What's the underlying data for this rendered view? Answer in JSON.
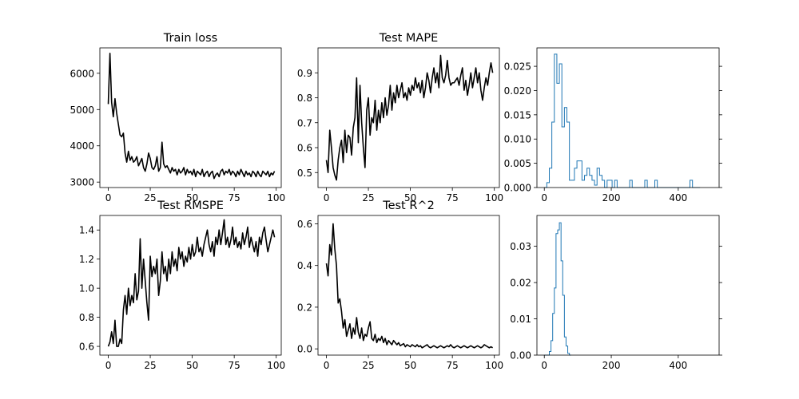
{
  "chart_data": [
    {
      "type": "line",
      "title": "Train loss",
      "xlim": [
        -5,
        103
      ],
      "ylim": [
        2850,
        6700
      ],
      "xticks": [
        "0",
        "25",
        "50",
        "75",
        "100"
      ],
      "yticks": [
        "3000",
        "4000",
        "5000",
        "6000"
      ],
      "line_color": "#000000",
      "x": [
        0,
        1,
        2,
        3,
        4,
        5,
        6,
        7,
        8,
        9,
        10,
        11,
        12,
        13,
        14,
        15,
        16,
        17,
        18,
        19,
        20,
        21,
        22,
        23,
        24,
        25,
        26,
        27,
        28,
        29,
        30,
        31,
        32,
        33,
        34,
        35,
        36,
        37,
        38,
        39,
        40,
        41,
        42,
        43,
        44,
        45,
        46,
        47,
        48,
        49,
        50,
        51,
        52,
        53,
        54,
        55,
        56,
        57,
        58,
        59,
        60,
        61,
        62,
        63,
        64,
        65,
        66,
        67,
        68,
        69,
        70,
        71,
        72,
        73,
        74,
        75,
        76,
        77,
        78,
        79,
        80,
        81,
        82,
        83,
        84,
        85,
        86,
        87,
        88,
        89,
        90,
        91,
        92,
        93,
        94,
        95,
        96,
        97,
        98,
        99
      ],
      "y": [
        5150,
        6550,
        5200,
        4800,
        5300,
        4900,
        4600,
        4300,
        4250,
        4350,
        3800,
        3550,
        3850,
        3600,
        3700,
        3550,
        3600,
        3700,
        3450,
        3550,
        3650,
        3400,
        3300,
        3500,
        3800,
        3650,
        3400,
        3350,
        3450,
        3700,
        3300,
        3400,
        4100,
        3500,
        3400,
        3450,
        3350,
        3250,
        3400,
        3300,
        3350,
        3200,
        3350,
        3250,
        3300,
        3400,
        3200,
        3350,
        3250,
        3300,
        3200,
        3350,
        3150,
        3300,
        3250,
        3200,
        3350,
        3150,
        3250,
        3300,
        3150,
        3250,
        3300,
        3100,
        3200,
        3250,
        3150,
        3300,
        3350,
        3200,
        3300,
        3250,
        3350,
        3200,
        3300,
        3250,
        3150,
        3300,
        3200,
        3350,
        3250,
        3150,
        3300,
        3200,
        3250,
        3150,
        3300,
        3250,
        3150,
        3300,
        3200,
        3150,
        3300,
        3250,
        3200,
        3300,
        3150,
        3250,
        3200,
        3300
      ]
    },
    {
      "type": "line",
      "title": "Test MAPE",
      "xlim": [
        -5,
        103
      ],
      "ylim": [
        0.44,
        1.0
      ],
      "xticks": [
        "0",
        "25",
        "50",
        "75",
        "100"
      ],
      "yticks": [
        "0.5",
        "0.6",
        "0.7",
        "0.8",
        "0.9"
      ],
      "line_color": "#000000",
      "x": [
        0,
        1,
        2,
        3,
        4,
        5,
        6,
        7,
        8,
        9,
        10,
        11,
        12,
        13,
        14,
        15,
        16,
        17,
        18,
        19,
        20,
        21,
        22,
        23,
        24,
        25,
        26,
        27,
        28,
        29,
        30,
        31,
        32,
        33,
        34,
        35,
        36,
        37,
        38,
        39,
        40,
        41,
        42,
        43,
        44,
        45,
        46,
        47,
        48,
        49,
        50,
        51,
        52,
        53,
        54,
        55,
        56,
        57,
        58,
        59,
        60,
        61,
        62,
        63,
        64,
        65,
        66,
        67,
        68,
        69,
        70,
        71,
        72,
        73,
        74,
        75,
        76,
        77,
        78,
        79,
        80,
        81,
        82,
        83,
        84,
        85,
        86,
        87,
        88,
        89,
        90,
        91,
        92,
        93,
        94,
        95,
        96,
        97,
        98,
        99
      ],
      "y": [
        0.55,
        0.5,
        0.67,
        0.6,
        0.52,
        0.49,
        0.47,
        0.55,
        0.6,
        0.63,
        0.54,
        0.67,
        0.58,
        0.65,
        0.64,
        0.57,
        0.68,
        0.72,
        0.88,
        0.62,
        0.85,
        0.7,
        0.6,
        0.52,
        0.75,
        0.8,
        0.65,
        0.72,
        0.7,
        0.79,
        0.67,
        0.75,
        0.7,
        0.78,
        0.72,
        0.8,
        0.73,
        0.77,
        0.85,
        0.75,
        0.82,
        0.78,
        0.85,
        0.8,
        0.83,
        0.86,
        0.8,
        0.82,
        0.79,
        0.84,
        0.81,
        0.85,
        0.83,
        0.88,
        0.84,
        0.86,
        0.82,
        0.87,
        0.8,
        0.84,
        0.9,
        0.87,
        0.82,
        0.88,
        0.92,
        0.86,
        0.9,
        0.84,
        0.97,
        0.88,
        0.86,
        0.89,
        0.95,
        0.88,
        0.85,
        0.86,
        0.86,
        0.87,
        0.88,
        0.85,
        0.89,
        0.92,
        0.83,
        0.87,
        0.81,
        0.85,
        0.9,
        0.84,
        0.88,
        0.92,
        0.86,
        0.9,
        0.83,
        0.79,
        0.84,
        0.88,
        0.85,
        0.9,
        0.94,
        0.9
      ]
    },
    {
      "type": "bar",
      "subtype": "step-histogram",
      "title": "",
      "xlim": [
        -22,
        522
      ],
      "ylim": [
        0,
        0.0288
      ],
      "xticks": [
        "0",
        "200",
        "400"
      ],
      "yticks": [
        "0.000",
        "0.005",
        "0.010",
        "0.015",
        "0.020",
        "0.025"
      ],
      "line_color": "#1f77b4",
      "bin_width": 7.5,
      "bins_start": 0,
      "values": [
        0,
        0.001,
        0.004,
        0.0135,
        0.0275,
        0.0215,
        0.0255,
        0.0125,
        0.0165,
        0.0135,
        0.0015,
        0.0015,
        0.004,
        0.0055,
        0.0055,
        0.0015,
        0.0025,
        0.004,
        0.0025,
        0.0015,
        0.0005,
        0.004,
        0.0025,
        0.0015,
        0,
        0.0015,
        0.0015,
        0,
        0.0015,
        0,
        0,
        0,
        0,
        0,
        0.0015,
        0,
        0,
        0,
        0,
        0,
        0.0015,
        0,
        0,
        0,
        0.0015,
        0,
        0,
        0,
        0,
        0,
        0,
        0,
        0,
        0,
        0,
        0,
        0,
        0,
        0.0015,
        0,
        0,
        0
      ]
    },
    {
      "type": "line",
      "title": "Test RMSPE",
      "xlim": [
        -5,
        103
      ],
      "ylim": [
        0.54,
        1.5
      ],
      "xticks": [
        "0",
        "25",
        "50",
        "75",
        "100"
      ],
      "yticks": [
        "0.6",
        "0.8",
        "1.0",
        "1.2",
        "1.4"
      ],
      "line_color": "#000000",
      "x": [
        0,
        1,
        2,
        3,
        4,
        5,
        6,
        7,
        8,
        9,
        10,
        11,
        12,
        13,
        14,
        15,
        16,
        17,
        18,
        19,
        20,
        21,
        22,
        23,
        24,
        25,
        26,
        27,
        28,
        29,
        30,
        31,
        32,
        33,
        34,
        35,
        36,
        37,
        38,
        39,
        40,
        41,
        42,
        43,
        44,
        45,
        46,
        47,
        48,
        49,
        50,
        51,
        52,
        53,
        54,
        55,
        56,
        57,
        58,
        59,
        60,
        61,
        62,
        63,
        64,
        65,
        66,
        67,
        68,
        69,
        70,
        71,
        72,
        73,
        74,
        75,
        76,
        77,
        78,
        79,
        80,
        81,
        82,
        83,
        84,
        85,
        86,
        87,
        88,
        89,
        90,
        91,
        92,
        93,
        94,
        95,
        96,
        97,
        98,
        99
      ],
      "y": [
        0.6,
        0.63,
        0.7,
        0.62,
        0.78,
        0.6,
        0.6,
        0.65,
        0.62,
        0.85,
        0.95,
        0.82,
        1.0,
        0.88,
        0.95,
        0.9,
        1.1,
        0.92,
        0.98,
        1.34,
        1.0,
        1.2,
        1.05,
        0.9,
        0.78,
        1.22,
        1.08,
        1.15,
        1.1,
        1.2,
        0.95,
        1.05,
        1.25,
        1.1,
        1.15,
        1.05,
        1.2,
        1.1,
        1.25,
        1.15,
        1.2,
        1.12,
        1.28,
        1.2,
        1.25,
        1.15,
        1.22,
        1.18,
        1.28,
        1.2,
        1.3,
        1.22,
        1.25,
        1.35,
        1.25,
        1.28,
        1.22,
        1.3,
        1.35,
        1.4,
        1.3,
        1.25,
        1.32,
        1.22,
        1.35,
        1.3,
        1.4,
        1.3,
        1.38,
        1.47,
        1.3,
        1.35,
        1.28,
        1.33,
        1.42,
        1.3,
        1.35,
        1.28,
        1.32,
        1.27,
        1.38,
        1.3,
        1.35,
        1.42,
        1.28,
        1.35,
        1.3,
        1.25,
        1.32,
        1.22,
        1.35,
        1.3,
        1.38,
        1.42,
        1.33,
        1.25,
        1.3,
        1.35,
        1.4,
        1.35
      ]
    },
    {
      "type": "line",
      "title": "Test R^2",
      "xlim": [
        -5,
        103
      ],
      "ylim": [
        -0.03,
        0.64
      ],
      "xticks": [
        "0",
        "25",
        "50",
        "75",
        "100"
      ],
      "yticks": [
        "0.0",
        "0.2",
        "0.4",
        "0.6"
      ],
      "line_color": "#000000",
      "x": [
        0,
        1,
        2,
        3,
        4,
        5,
        6,
        7,
        8,
        9,
        10,
        11,
        12,
        13,
        14,
        15,
        16,
        17,
        18,
        19,
        20,
        21,
        22,
        23,
        24,
        25,
        26,
        27,
        28,
        29,
        30,
        31,
        32,
        33,
        34,
        35,
        36,
        37,
        38,
        39,
        40,
        41,
        42,
        43,
        44,
        45,
        46,
        47,
        48,
        49,
        50,
        51,
        52,
        53,
        54,
        55,
        56,
        57,
        58,
        59,
        60,
        61,
        62,
        63,
        64,
        65,
        66,
        67,
        68,
        69,
        70,
        71,
        72,
        73,
        74,
        75,
        76,
        77,
        78,
        79,
        80,
        81,
        82,
        83,
        84,
        85,
        86,
        87,
        88,
        89,
        90,
        91,
        92,
        93,
        94,
        95,
        96,
        97,
        98,
        99
      ],
      "y": [
        0.41,
        0.35,
        0.5,
        0.45,
        0.6,
        0.48,
        0.4,
        0.22,
        0.24,
        0.18,
        0.1,
        0.14,
        0.06,
        0.09,
        0.12,
        0.05,
        0.1,
        0.07,
        0.15,
        0.08,
        0.05,
        0.1,
        0.04,
        0.07,
        0.06,
        0.1,
        0.13,
        0.05,
        0.04,
        0.07,
        0.03,
        0.05,
        0.04,
        0.06,
        0.03,
        0.05,
        0.02,
        0.04,
        0.03,
        0.02,
        0.04,
        0.03,
        0.02,
        0.03,
        0.015,
        0.02,
        0.025,
        0.01,
        0.02,
        0.015,
        0.01,
        0.02,
        0.015,
        0.01,
        0.02,
        0.01,
        0.015,
        0.005,
        0.01,
        0.015,
        0.02,
        0.01,
        0.005,
        0.01,
        0.015,
        0.01,
        0.005,
        0.01,
        0.015,
        0.01,
        0.005,
        0.01,
        0.015,
        0.01,
        0.02,
        0.01,
        0.005,
        0.01,
        0.015,
        0.01,
        0.005,
        0.01,
        0.015,
        0.01,
        0.005,
        0.01,
        0.015,
        0.01,
        0.005,
        0.01,
        0.015,
        0.01,
        0.005,
        0.01,
        0.02,
        0.015,
        0.01,
        0.005,
        0.01,
        0.005
      ]
    },
    {
      "type": "bar",
      "subtype": "step-histogram",
      "title": "",
      "xlim": [
        -22,
        522
      ],
      "ylim": [
        0,
        0.0385
      ],
      "xticks": [
        "0",
        "200",
        "400"
      ],
      "yticks": [
        "0.00",
        "0.01",
        "0.02",
        "0.03"
      ],
      "line_color": "#1f77b4",
      "bin_width": 5,
      "bins_start": 0,
      "values": [
        0,
        0,
        0,
        0.001,
        0.004,
        0.0115,
        0.0185,
        0.0335,
        0.0345,
        0.0365,
        0.026,
        0.0165,
        0.005,
        0.0025,
        0.0005,
        0
      ]
    }
  ]
}
